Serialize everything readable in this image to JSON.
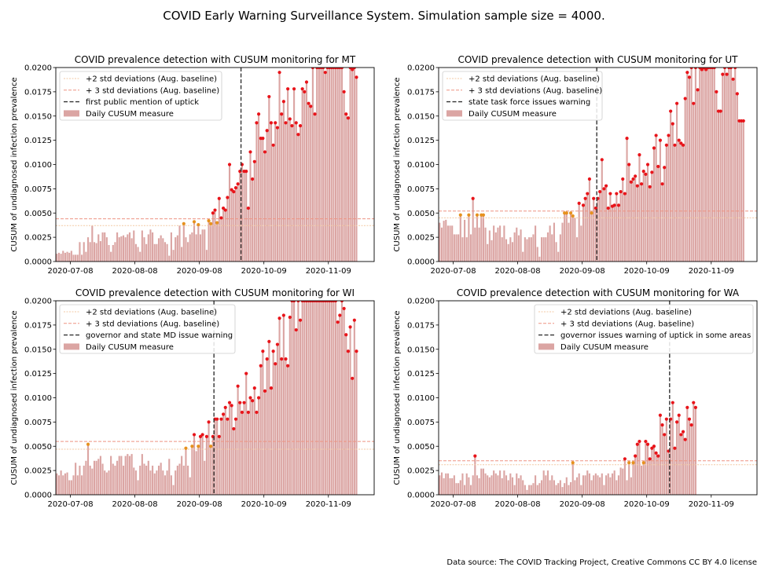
{
  "figure": {
    "suptitle": "COVID Early Warning Surveillance System. Simulation sample size = 4000.",
    "source": "Data source: The COVID Tracking Project, Creative Commons CC BY 4.0 license"
  },
  "colors": {
    "bar": "#dba5a3",
    "bar_edge": "#c98886",
    "std2_line": "#f3c9a4",
    "std3_line": "#ee9482",
    "mention_line": "#333333",
    "point_red": "#e8141a",
    "point_orange": "#e6911e"
  },
  "chart_data": [
    {
      "type": "bar",
      "title": "COVID prevalence detection with CUSUM monitoring for MT",
      "ylabel": "CUSUM of undiagnosed infection prevalence",
      "xlabel": "",
      "x_start": "2020-07-01",
      "x_end": "2020-12-01",
      "ylim": [
        0,
        0.02
      ],
      "yticks": [
        "0.0000",
        "0.0025",
        "0.0050",
        "0.0075",
        "0.0100",
        "0.0125",
        "0.0150",
        "0.0175",
        "0.0200"
      ],
      "xticks": [
        {
          "date": "2020-07-08",
          "label": "2020-07-08"
        },
        {
          "date": "2020-08-08",
          "label": "2020-08-08"
        },
        {
          "date": "2020-09-08",
          "label": "2020-09-08"
        },
        {
          "date": "2020-10-09",
          "label": "2020-10-09"
        },
        {
          "date": "2020-11-09",
          "label": "2020-11-09"
        }
      ],
      "std2": 0.0037,
      "std3": 0.0044,
      "mention_date": "2020-09-28",
      "legend_position": "upper-left",
      "legend": [
        "+2 std deviations (Aug. baseline)",
        "+ 3 std deviations (Aug. baseline)",
        "first public mention of uptick",
        "Daily CUSUM measure"
      ],
      "values": [
        0.0008,
        0.0009,
        0.0008,
        0.0011,
        0.0009,
        0.001,
        0.0009,
        0.0011,
        0.0007,
        0.0007,
        0.0007,
        0.002,
        0.0007,
        0.002,
        0.001,
        0.0025,
        0.002,
        0.0037,
        0.002,
        0.0019,
        0.0028,
        0.0021,
        0.003,
        0.003,
        0.0025,
        0.0017,
        0.001,
        0.0017,
        0.002,
        0.003,
        0.0025,
        0.0026,
        0.0027,
        0.0025,
        0.0028,
        0.003,
        0.0024,
        0.0032,
        0.0018,
        0.0015,
        0.001,
        0.0032,
        0.0025,
        0.0018,
        0.0028,
        0.0033,
        0.003,
        0.0018,
        0.0018,
        0.0024,
        0.0027,
        0.0024,
        0.002,
        0.0018,
        0.0006,
        0.003,
        0.0012,
        0.0025,
        0.0027,
        0.0037,
        0.0015,
        0.0039,
        0.0025,
        0.002,
        0.0028,
        0.003,
        0.0041,
        0.0028,
        0.0038,
        0.0028,
        0.0033,
        0.0033,
        0.0012,
        0.0042,
        0.0039,
        0.005,
        0.0053,
        0.004,
        0.0065,
        0.0045,
        0.0055,
        0.0053,
        0.0066,
        0.01,
        0.0074,
        0.0072,
        0.0076,
        0.008,
        0.0093,
        0.01,
        0.0093,
        0.0093,
        0.0055,
        0.0113,
        0.0085,
        0.0103,
        0.0143,
        0.0152,
        0.0127,
        0.0127,
        0.0113,
        0.0135,
        0.017,
        0.0143,
        0.012,
        0.0143,
        0.0138,
        0.0195,
        0.0152,
        0.0165,
        0.0143,
        0.0178,
        0.0147,
        0.014,
        0.0178,
        0.0143,
        0.0131,
        0.014,
        0.0178,
        0.0175,
        0.0185,
        0.0163,
        0.016,
        0.021,
        0.0152,
        0.021,
        0.021,
        0.021,
        0.021,
        0.0195,
        0.021,
        0.021,
        0.021,
        0.021,
        0.021,
        0.021,
        0.021,
        0.021,
        0.0175,
        0.0152,
        0.0148,
        0.021,
        0.0198,
        0.021,
        0.019
      ]
    },
    {
      "type": "bar",
      "title": "COVID prevalence detection with CUSUM monitoring for UT",
      "ylabel": "CUSUM of undiagnosed infection prevalence",
      "xlabel": "",
      "x_start": "2020-07-01",
      "x_end": "2020-12-01",
      "ylim": [
        0,
        0.02
      ],
      "yticks": [
        "0.0000",
        "0.0025",
        "0.0050",
        "0.0075",
        "0.0100",
        "0.0125",
        "0.0150",
        "0.0175",
        "0.0200"
      ],
      "xticks": [
        {
          "date": "2020-07-08",
          "label": "2020-07-08"
        },
        {
          "date": "2020-08-08",
          "label": "2020-08-08"
        },
        {
          "date": "2020-09-08",
          "label": "2020-09-08"
        },
        {
          "date": "2020-10-09",
          "label": "2020-10-09"
        },
        {
          "date": "2020-11-09",
          "label": "2020-11-09"
        }
      ],
      "std2": 0.0045,
      "std3": 0.0052,
      "mention_date": "2020-09-15",
      "legend_position": "upper-left",
      "legend": [
        "+2 std deviations (Aug. baseline)",
        "+ 3 std deviations (Aug. baseline)",
        "state task force issues warning",
        "Daily CUSUM measure"
      ],
      "values": [
        0.004,
        0.0035,
        0.0042,
        0.0043,
        0.0037,
        0.0037,
        0.0037,
        0.0028,
        0.0028,
        0.0028,
        0.0048,
        0.0025,
        0.0043,
        0.0025,
        0.0048,
        0.0028,
        0.0065,
        0.0035,
        0.0048,
        0.0035,
        0.0048,
        0.0048,
        0.0035,
        0.0018,
        0.0032,
        0.0022,
        0.0037,
        0.003,
        0.0035,
        0.0037,
        0.0025,
        0.0037,
        0.0023,
        0.0018,
        0.0025,
        0.002,
        0.003,
        0.0035,
        0.0027,
        0.0033,
        0.001,
        0.0025,
        0.0023,
        0.0025,
        0.0025,
        0.0028,
        0.0037,
        0.0015,
        0.0005,
        0.0025,
        0.0025,
        0.0025,
        0.003,
        0.0037,
        0.0028,
        0.004,
        0.002,
        0.001,
        0.0028,
        0.004,
        0.005,
        0.005,
        0.004,
        0.005,
        0.0047,
        0.0045,
        0.0025,
        0.006,
        0.0037,
        0.0058,
        0.0065,
        0.007,
        0.0085,
        0.005,
        0.0065,
        0.0055,
        0.0065,
        0.0072,
        0.0105,
        0.0075,
        0.0078,
        0.0055,
        0.007,
        0.0057,
        0.0058,
        0.007,
        0.0058,
        0.0072,
        0.0085,
        0.007,
        0.0127,
        0.01,
        0.0082,
        0.0085,
        0.0088,
        0.0078,
        0.011,
        0.008,
        0.0093,
        0.009,
        0.01,
        0.0077,
        0.0092,
        0.0117,
        0.013,
        0.0098,
        0.0125,
        0.008,
        0.0097,
        0.012,
        0.013,
        0.0155,
        0.0142,
        0.012,
        0.0163,
        0.0125,
        0.0122,
        0.012,
        0.0168,
        0.0195,
        0.019,
        0.021,
        0.0163,
        0.021,
        0.0177,
        0.021,
        0.0198,
        0.021,
        0.0198,
        0.021,
        0.021,
        0.021,
        0.021,
        0.0175,
        0.0155,
        0.0155,
        0.0193,
        0.021,
        0.0193,
        0.021,
        0.021,
        0.0188,
        0.021,
        0.0173,
        0.0145,
        0.0145,
        0.0145
      ]
    },
    {
      "type": "bar",
      "title": "COVID prevalence detection with CUSUM monitoring for WI",
      "ylabel": "CUSUM of undiagnosed infection prevalence",
      "xlabel": "",
      "x_start": "2020-07-01",
      "x_end": "2020-12-01",
      "ylim": [
        0,
        0.02
      ],
      "yticks": [
        "0.0000",
        "0.0025",
        "0.0050",
        "0.0075",
        "0.0100",
        "0.0125",
        "0.0150",
        "0.0175",
        "0.0200"
      ],
      "xticks": [
        {
          "date": "2020-07-08",
          "label": "2020-07-08"
        },
        {
          "date": "2020-08-08",
          "label": "2020-08-08"
        },
        {
          "date": "2020-09-08",
          "label": "2020-09-08"
        },
        {
          "date": "2020-10-09",
          "label": "2020-10-09"
        },
        {
          "date": "2020-11-09",
          "label": "2020-11-09"
        }
      ],
      "std2": 0.0047,
      "std3": 0.0055,
      "mention_date": "2020-09-15",
      "legend_position": "upper-left",
      "legend": [
        "+2 std deviations (Aug. baseline)",
        "+ 3 std deviations (Aug. baseline)",
        "governor and state MD issue warning",
        "Daily CUSUM measure"
      ],
      "values": [
        0.0022,
        0.002,
        0.0025,
        0.002,
        0.0022,
        0.0023,
        0.0015,
        0.0015,
        0.002,
        0.0033,
        0.002,
        0.003,
        0.002,
        0.003,
        0.0035,
        0.0052,
        0.003,
        0.0027,
        0.0035,
        0.0035,
        0.0037,
        0.004,
        0.0032,
        0.0025,
        0.0023,
        0.0025,
        0.004,
        0.0032,
        0.003,
        0.0035,
        0.004,
        0.004,
        0.003,
        0.004,
        0.0042,
        0.004,
        0.0042,
        0.0028,
        0.0025,
        0.0015,
        0.003,
        0.0042,
        0.0032,
        0.003,
        0.0035,
        0.0025,
        0.003,
        0.0022,
        0.0025,
        0.003,
        0.0033,
        0.0025,
        0.002,
        0.0025,
        0.0037,
        0.002,
        0.001,
        0.0025,
        0.003,
        0.0032,
        0.004,
        0.003,
        0.0048,
        0.003,
        0.0018,
        0.005,
        0.0062,
        0.0045,
        0.005,
        0.006,
        0.0062,
        0.0035,
        0.006,
        0.0075,
        0.005,
        0.006,
        0.0078,
        0.0078,
        0.006,
        0.0078,
        0.0083,
        0.009,
        0.0078,
        0.0095,
        0.0092,
        0.0068,
        0.0078,
        0.0112,
        0.0095,
        0.0085,
        0.0095,
        0.0125,
        0.0085,
        0.01,
        0.0097,
        0.011,
        0.0085,
        0.01,
        0.0133,
        0.0148,
        0.0107,
        0.014,
        0.0158,
        0.011,
        0.0148,
        0.0135,
        0.0155,
        0.0182,
        0.014,
        0.0185,
        0.014,
        0.0133,
        0.0183,
        0.021,
        0.021,
        0.017,
        0.021,
        0.018,
        0.021,
        0.021,
        0.021,
        0.021,
        0.021,
        0.021,
        0.021,
        0.021,
        0.021,
        0.021,
        0.021,
        0.021,
        0.021,
        0.021,
        0.021,
        0.021,
        0.021,
        0.0178,
        0.0185,
        0.02,
        0.0192,
        0.0165,
        0.0148,
        0.0173,
        0.012,
        0.018,
        0.0148
      ]
    },
    {
      "type": "bar",
      "title": "COVID prevalence detection with CUSUM monitoring for WA",
      "ylabel": "CUSUM of undiagnosed infection prevalence",
      "xlabel": "",
      "x_start": "2020-07-01",
      "x_end": "2020-12-01",
      "ylim": [
        0,
        0.02
      ],
      "yticks": [
        "0.0000",
        "0.0025",
        "0.0050",
        "0.0075",
        "0.0100",
        "0.0125",
        "0.0150",
        "0.0175",
        "0.0200"
      ],
      "xticks": [
        {
          "date": "2020-07-08",
          "label": "2020-07-08"
        },
        {
          "date": "2020-08-08",
          "label": "2020-08-08"
        },
        {
          "date": "2020-09-08",
          "label": "2020-09-08"
        },
        {
          "date": "2020-10-09",
          "label": "2020-10-09"
        },
        {
          "date": "2020-11-09",
          "label": "2020-11-09"
        }
      ],
      "std2": 0.0031,
      "std3": 0.0035,
      "mention_date": "2020-10-20",
      "legend_position": "upper-right",
      "legend": [
        "+2 std deviations (Aug. baseline)",
        "+ 3 std deviations (Aug. baseline)",
        "governor issues warning of uptick in some areas",
        "Daily CUSUM measure"
      ],
      "values": [
        0.002,
        0.0023,
        0.0017,
        0.0022,
        0.0022,
        0.0017,
        0.0017,
        0.002,
        0.0012,
        0.0012,
        0.0015,
        0.0022,
        0.001,
        0.0022,
        0.0018,
        0.001,
        0.002,
        0.004,
        0.002,
        0.0017,
        0.0027,
        0.0027,
        0.0022,
        0.002,
        0.0018,
        0.002,
        0.0025,
        0.0022,
        0.002,
        0.0025,
        0.0017,
        0.0025,
        0.002,
        0.0015,
        0.0022,
        0.0018,
        0.001,
        0.0022,
        0.0017,
        0.002,
        0.0015,
        0.001,
        0.0005,
        0.001,
        0.001,
        0.0012,
        0.002,
        0.001,
        0.0012,
        0.0015,
        0.0025,
        0.002,
        0.0025,
        0.0015,
        0.002,
        0.0015,
        0.001,
        0.0012,
        0.0015,
        0.0008,
        0.0012,
        0.0018,
        0.001,
        0.0013,
        0.0033,
        0.0015,
        0.0018,
        0.0022,
        0.001,
        0.002,
        0.002,
        0.0025,
        0.0022,
        0.0015,
        0.002,
        0.0022,
        0.002,
        0.0018,
        0.0022,
        0.001,
        0.002,
        0.0022,
        0.0018,
        0.0022,
        0.0025,
        0.0015,
        0.002,
        0.0028,
        0.0027,
        0.0037,
        0.0015,
        0.0033,
        0.0018,
        0.0033,
        0.004,
        0.0052,
        0.0055,
        0.003,
        0.0033,
        0.0055,
        0.0052,
        0.0037,
        0.0048,
        0.005,
        0.0043,
        0.004,
        0.0082,
        0.0072,
        0.0062,
        0.0078,
        0.0045,
        0.0078,
        0.0095,
        0.0048,
        0.0075,
        0.0082,
        0.0062,
        0.0065,
        0.0057,
        0.009,
        0.0078,
        0.0072,
        0.0095,
        0.009
      ]
    }
  ]
}
